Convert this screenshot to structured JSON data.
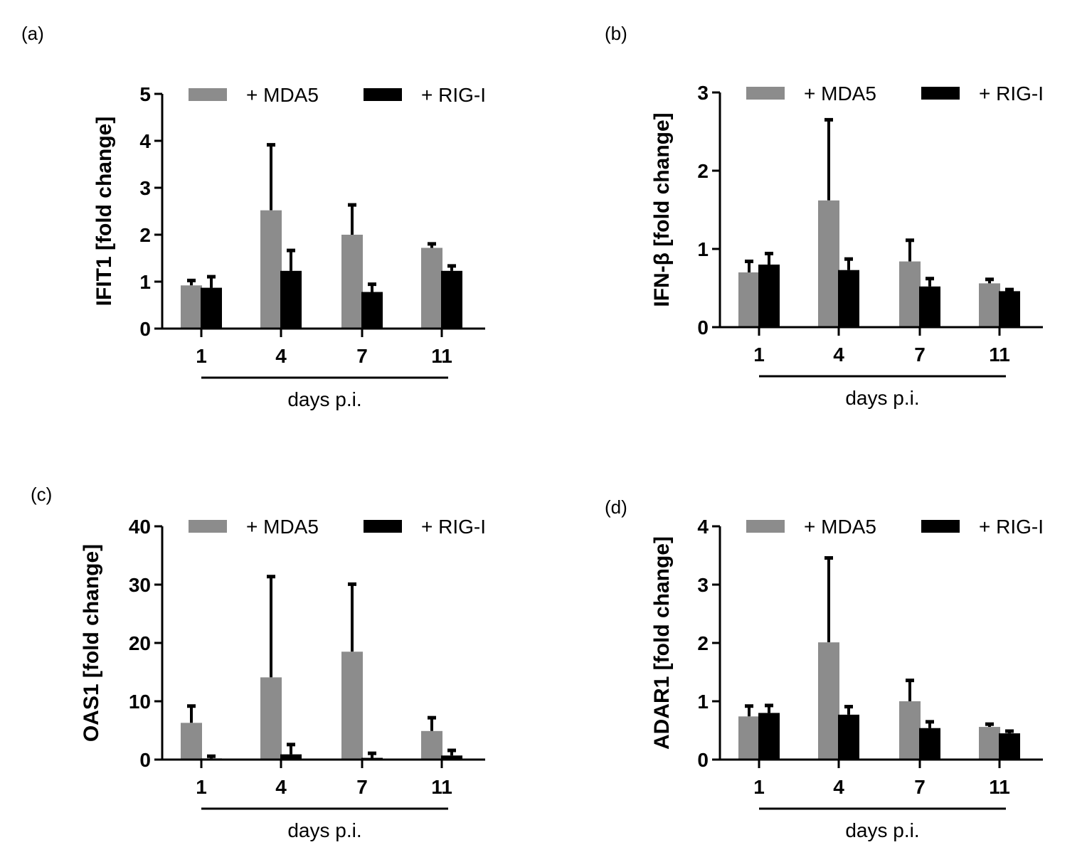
{
  "figure": {
    "xlabel": "days p.i.",
    "legend": [
      "+ MDA5",
      "+ RIG-I"
    ],
    "colors": {
      "mda5": "#8c8c8c",
      "rigi": "#000000",
      "axis": "#000000"
    }
  },
  "chart_data": [
    {
      "panel": "(a)",
      "type": "bar",
      "title": "",
      "ylabel": "IFIT1 [fold change]",
      "xlabel": "days p.i.",
      "categories": [
        "1",
        "4",
        "7",
        "11"
      ],
      "ylim": [
        0,
        5
      ],
      "yticks": [
        0,
        1,
        2,
        3,
        4,
        5
      ],
      "legend_position": "top",
      "series": [
        {
          "name": "+ MDA5",
          "color": "#8c8c8c",
          "values": [
            0.92,
            2.52,
            2.0,
            1.72
          ],
          "error_upper": [
            1.04,
            3.93,
            2.65,
            1.82
          ]
        },
        {
          "name": "+ RIG-I",
          "color": "#000000",
          "values": [
            0.87,
            1.23,
            0.78,
            1.23
          ],
          "error_upper": [
            1.12,
            1.68,
            0.96,
            1.35
          ]
        }
      ]
    },
    {
      "panel": "(b)",
      "type": "bar",
      "title": "",
      "ylabel": "IFN-β [fold change]",
      "xlabel": "days p.i.",
      "categories": [
        "1",
        "4",
        "7",
        "11"
      ],
      "ylim": [
        0,
        3
      ],
      "yticks": [
        0,
        1,
        2,
        3
      ],
      "legend_position": "top",
      "series": [
        {
          "name": "+ MDA5",
          "color": "#8c8c8c",
          "values": [
            0.7,
            1.62,
            0.84,
            0.56
          ],
          "error_upper": [
            0.85,
            2.66,
            1.12,
            0.62
          ]
        },
        {
          "name": "+ RIG-I",
          "color": "#000000",
          "values": [
            0.8,
            0.73,
            0.52,
            0.46
          ],
          "error_upper": [
            0.95,
            0.88,
            0.63,
            0.49
          ]
        }
      ]
    },
    {
      "panel": "(c)",
      "type": "bar",
      "title": "",
      "ylabel": "OAS1 [fold change]",
      "xlabel": "days p.i.",
      "categories": [
        "1",
        "4",
        "7",
        "11"
      ],
      "ylim": [
        0,
        40
      ],
      "yticks": [
        0,
        10,
        20,
        30,
        40
      ],
      "legend_position": "top",
      "series": [
        {
          "name": "+ MDA5",
          "color": "#8c8c8c",
          "values": [
            6.3,
            14.1,
            18.5,
            4.9
          ],
          "error_upper": [
            9.3,
            31.5,
            30.2,
            7.3
          ]
        },
        {
          "name": "+ RIG-I",
          "color": "#000000",
          "values": [
            0.2,
            0.9,
            0.3,
            0.7
          ],
          "error_upper": [
            0.7,
            2.7,
            1.2,
            1.7
          ]
        }
      ]
    },
    {
      "panel": "(d)",
      "type": "bar",
      "title": "",
      "ylabel": "ADAR1 [fold change]",
      "xlabel": "days p.i.",
      "categories": [
        "1",
        "4",
        "7",
        "11"
      ],
      "ylim": [
        0,
        4
      ],
      "yticks": [
        0,
        1,
        2,
        3,
        4
      ],
      "legend_position": "top",
      "series": [
        {
          "name": "+ MDA5",
          "color": "#8c8c8c",
          "values": [
            0.74,
            2.01,
            1.0,
            0.56
          ],
          "error_upper": [
            0.93,
            3.47,
            1.37,
            0.62
          ]
        },
        {
          "name": "+ RIG-I",
          "color": "#000000",
          "values": [
            0.8,
            0.77,
            0.54,
            0.45
          ],
          "error_upper": [
            0.94,
            0.92,
            0.66,
            0.5
          ]
        }
      ]
    }
  ]
}
